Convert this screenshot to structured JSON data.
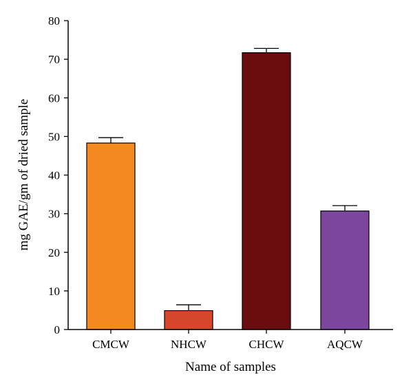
{
  "chart_data": {
    "type": "bar",
    "title": "",
    "xlabel": "Name of samples",
    "ylabel": "mg GAE/gm of dried sample",
    "categories": [
      "CMCW",
      "NHCW",
      "CHCW",
      "AQCW"
    ],
    "values": [
      48.3,
      4.9,
      71.7,
      30.7
    ],
    "errors": [
      1.4,
      1.5,
      1.1,
      1.4
    ],
    "colors": [
      "#F28A21",
      "#D6462A",
      "#6B0C0F",
      "#7A479D"
    ],
    "ylim": [
      0,
      80
    ],
    "yticks": [
      0,
      10,
      20,
      30,
      40,
      50,
      60,
      70,
      80
    ],
    "grid": false,
    "legend": "none"
  }
}
